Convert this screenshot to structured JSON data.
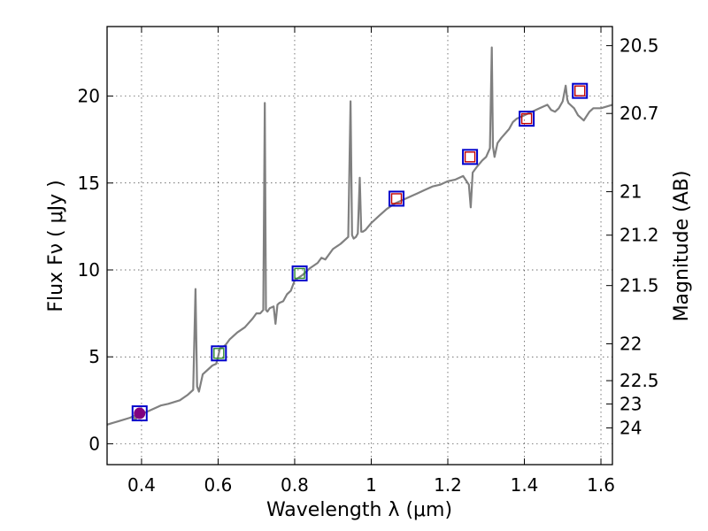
{
  "chart_data": {
    "type": "line",
    "xlabel": "Wavelength  λ (μm)",
    "ylabel": "Flux  Fν  ( μJy )",
    "y2label": "Magnitude (AB)",
    "xlim": [
      0.31,
      1.63
    ],
    "ylim": [
      -1.2,
      24
    ],
    "grid": true,
    "x_ticks": [
      0.4,
      0.6,
      0.8,
      1.0,
      1.2,
      1.4,
      1.6
    ],
    "x_tick_labels": [
      "0.4",
      "0.6",
      "0.8",
      "1",
      "1.2",
      "1.4",
      "1.6"
    ],
    "y_ticks": [
      0,
      5,
      10,
      15,
      20
    ],
    "y_tick_labels": [
      "0",
      "5",
      "10",
      "15",
      "20"
    ],
    "right_ticks": [
      {
        "label": "20.5",
        "flux": 22.9
      },
      {
        "label": "20.7",
        "flux": 19.0
      },
      {
        "label": "21",
        "flux": 14.5
      },
      {
        "label": "21.2",
        "flux": 12.0
      },
      {
        "label": "21.5",
        "flux": 9.1
      },
      {
        "label": "22",
        "flux": 5.75
      },
      {
        "label": "22.5",
        "flux": 3.63
      },
      {
        "label": "23",
        "flux": 2.29
      },
      {
        "label": "24",
        "flux": 0.91
      }
    ],
    "series": [
      {
        "name": "spectrum",
        "color": "#808080",
        "x": [
          0.31,
          0.34,
          0.37,
          0.38,
          0.383,
          0.39,
          0.42,
          0.45,
          0.47,
          0.5,
          0.52,
          0.535,
          0.541,
          0.545,
          0.55,
          0.56,
          0.575,
          0.585,
          0.595,
          0.6,
          0.605,
          0.615,
          0.62,
          0.63,
          0.65,
          0.67,
          0.69,
          0.7,
          0.71,
          0.718,
          0.722,
          0.725,
          0.729,
          0.735,
          0.745,
          0.75,
          0.755,
          0.76,
          0.77,
          0.78,
          0.79,
          0.8,
          0.82,
          0.84,
          0.86,
          0.87,
          0.88,
          0.9,
          0.92,
          0.94,
          0.946,
          0.95,
          0.954,
          0.96,
          0.965,
          0.97,
          0.974,
          0.978,
          0.985,
          1.0,
          1.02,
          1.04,
          1.06,
          1.08,
          1.1,
          1.12,
          1.14,
          1.16,
          1.18,
          1.2,
          1.22,
          1.24,
          1.255,
          1.26,
          1.265,
          1.275,
          1.29,
          1.3,
          1.31,
          1.315,
          1.318,
          1.322,
          1.33,
          1.34,
          1.36,
          1.37,
          1.38,
          1.4,
          1.42,
          1.44,
          1.46,
          1.47,
          1.48,
          1.49,
          1.5,
          1.508,
          1.512,
          1.515,
          1.53,
          1.54,
          1.555,
          1.57,
          1.58,
          1.6,
          1.63
        ],
        "y": [
          1.1,
          1.3,
          1.5,
          1.6,
          1.35,
          1.6,
          1.9,
          2.2,
          2.3,
          2.5,
          2.8,
          3.1,
          8.9,
          3.3,
          3.0,
          4.0,
          4.3,
          4.5,
          4.6,
          5.0,
          5.5,
          5.6,
          5.7,
          6.0,
          6.4,
          6.7,
          7.2,
          7.5,
          7.5,
          7.7,
          19.6,
          7.7,
          7.6,
          7.8,
          7.9,
          6.9,
          8.0,
          8.1,
          8.2,
          8.6,
          8.8,
          9.4,
          9.7,
          10.1,
          10.4,
          10.7,
          10.6,
          11.2,
          11.5,
          11.9,
          19.7,
          12.0,
          11.8,
          11.9,
          12.1,
          15.3,
          12.2,
          12.2,
          12.3,
          12.7,
          13.1,
          13.5,
          13.8,
          14.0,
          14.2,
          14.4,
          14.6,
          14.8,
          14.9,
          15.1,
          15.2,
          15.4,
          14.9,
          13.6,
          15.6,
          15.9,
          16.3,
          16.5,
          17.0,
          22.8,
          17.1,
          16.5,
          17.3,
          17.6,
          18.1,
          18.5,
          18.7,
          18.9,
          19.1,
          19.3,
          19.5,
          19.2,
          19.1,
          19.3,
          19.7,
          20.6,
          19.8,
          19.6,
          19.3,
          18.9,
          18.6,
          19.1,
          19.3,
          19.3,
          19.5
        ]
      }
    ],
    "photometry": [
      {
        "x": 0.395,
        "y": 1.75,
        "model_color": "#800080",
        "model_shape": "circle"
      },
      {
        "x": 0.602,
        "y": 5.2,
        "model_color": "#2e8b2e",
        "model_shape": "square"
      },
      {
        "x": 0.813,
        "y": 9.8,
        "model_color": "#2e8b2e",
        "model_shape": "square"
      },
      {
        "x": 1.066,
        "y": 14.1,
        "model_color": "#c00000",
        "model_shape": "square"
      },
      {
        "x": 1.258,
        "y": 16.5,
        "model_color": "#c00000",
        "model_shape": "square"
      },
      {
        "x": 1.406,
        "y": 18.7,
        "model_color": "#c00000",
        "model_shape": "square"
      },
      {
        "x": 1.545,
        "y": 20.3,
        "model_color": "#c00000",
        "model_shape": "square"
      }
    ],
    "observed_marker_color": "#0000cc"
  }
}
